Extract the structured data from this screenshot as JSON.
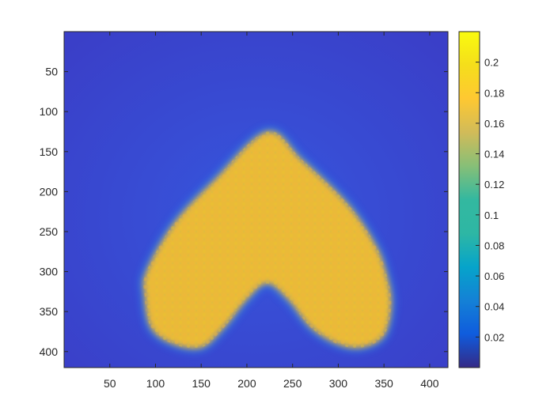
{
  "chart_data": {
    "type": "heatmap",
    "title": "",
    "xlabel": "",
    "ylabel": "",
    "image_size": [
      420,
      420
    ],
    "x_ticks": [
      50,
      100,
      150,
      200,
      250,
      300,
      350,
      400
    ],
    "x_tick_labels": [
      "50",
      "100",
      "150",
      "200",
      "250",
      "300",
      "350",
      "400"
    ],
    "y_ticks": [
      50,
      100,
      150,
      200,
      250,
      300,
      350,
      400
    ],
    "y_tick_labels": [
      "50",
      "100",
      "150",
      "200",
      "250",
      "300",
      "350",
      "400"
    ],
    "y_axis_direction": "reversed",
    "colormap": "parula",
    "colorbar": {
      "range": [
        0,
        0.22
      ],
      "ticks": [
        0.02,
        0.04,
        0.06,
        0.08,
        0.1,
        0.12,
        0.14,
        0.16,
        0.18,
        0.2
      ],
      "tick_labels": [
        "0.02",
        "0.04",
        "0.06",
        "0.08",
        "0.1",
        "0.12",
        "0.14",
        "0.16",
        "0.18",
        "0.2"
      ]
    },
    "background_value": 0.03,
    "shape": {
      "description_value_inside": 0.18,
      "lobe_bottoms_y": 395,
      "top_point": [
        222,
        125
      ],
      "notch_top": [
        222,
        315
      ],
      "left_edge_x": 88,
      "right_edge_x": 358
    }
  }
}
